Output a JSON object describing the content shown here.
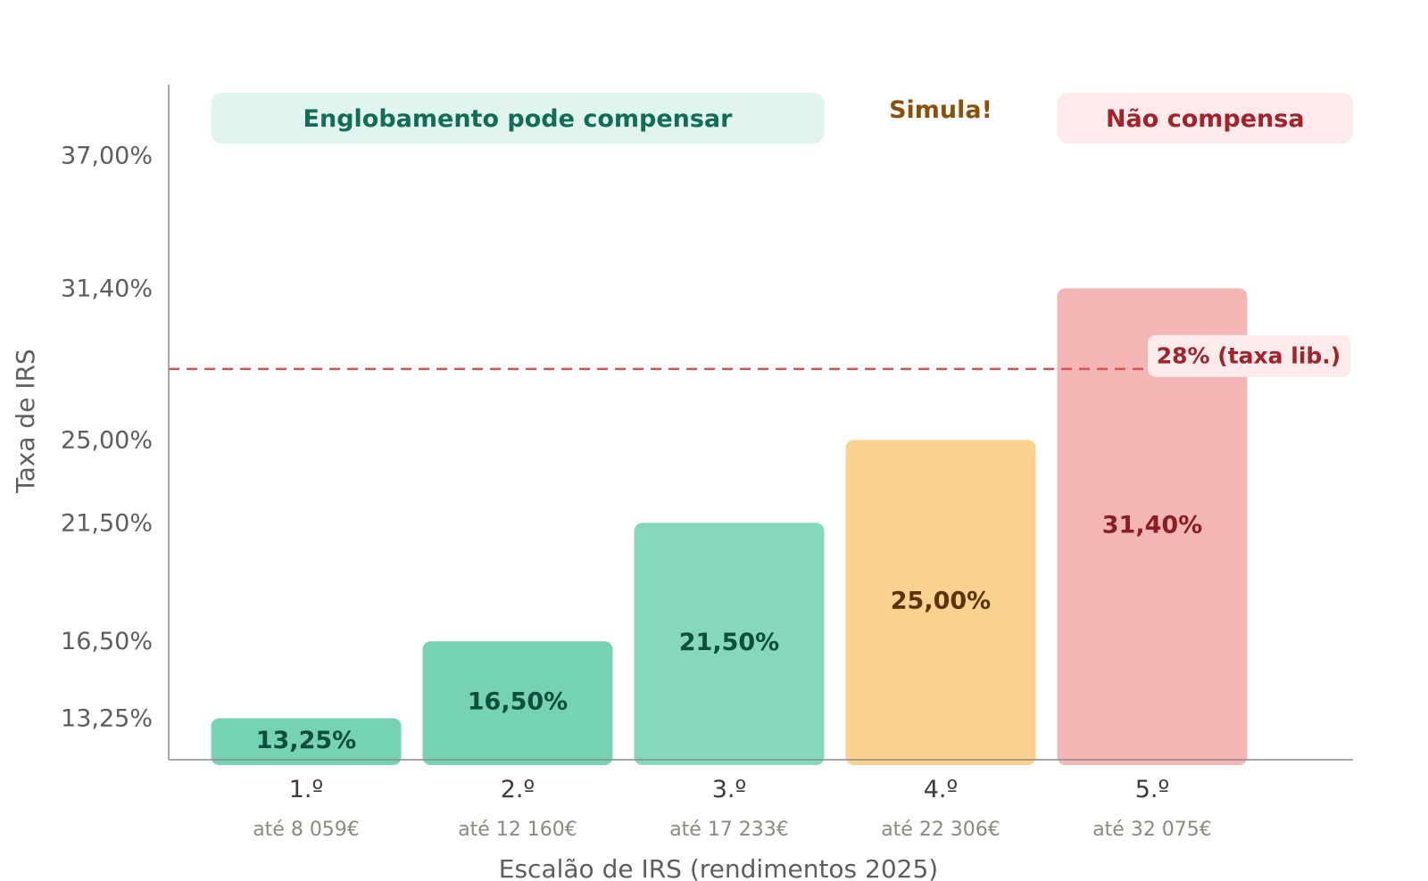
{
  "chart_data": {
    "type": "bar",
    "xlabel": "Escalão de IRS (rendimentos 2025)",
    "ylabel": "Taxa de IRS",
    "ylim": [
      11.5,
      40.0
    ],
    "yticks": [
      {
        "value": 13.25,
        "label": "13,25%"
      },
      {
        "value": 16.5,
        "label": "16,50%"
      },
      {
        "value": 21.5,
        "label": "21,50%"
      },
      {
        "value": 25.0,
        "label": "25,00%"
      },
      {
        "value": 31.4,
        "label": "31,40%"
      },
      {
        "value": 37.0,
        "label": "37,00%"
      }
    ],
    "categories": [
      "1.º",
      "2.º",
      "3.º",
      "4.º",
      "5.º"
    ],
    "subcategories": [
      "até 8 059€",
      "até 12 160€",
      "até 17 233€",
      "até 22 306€",
      "até 32 075€"
    ],
    "values": [
      13.25,
      16.5,
      21.5,
      25.0,
      31.4
    ],
    "value_labels": [
      "13,25%",
      "16,50%",
      "21,50%",
      "25,00%",
      "31,40%"
    ],
    "bar_colors": [
      "#75d2b3",
      "#75d2b3",
      "#85d8bc",
      "#fad290",
      "#f4b5b5"
    ],
    "label_colors": [
      "#0d4f3c",
      "#0d4f3c",
      "#0d4f3c",
      "#5a3405",
      "#8a1e24"
    ],
    "reference_line": {
      "value": 28.0,
      "label": "28% (taxa lib.)",
      "color": "#e05252"
    },
    "bands": [
      {
        "label": "Englobamento pode compensar",
        "from": 0,
        "to": 2,
        "bg": "#e2f4ee",
        "color": "#0f6e55"
      },
      {
        "label": "Simula!",
        "from": 3,
        "to": 3,
        "bg": "",
        "color": "#8a5208"
      },
      {
        "label": "Não compensa",
        "from": 4,
        "to": 4,
        "bg": "#fdeaea",
        "color": "#a3232b"
      }
    ]
  }
}
